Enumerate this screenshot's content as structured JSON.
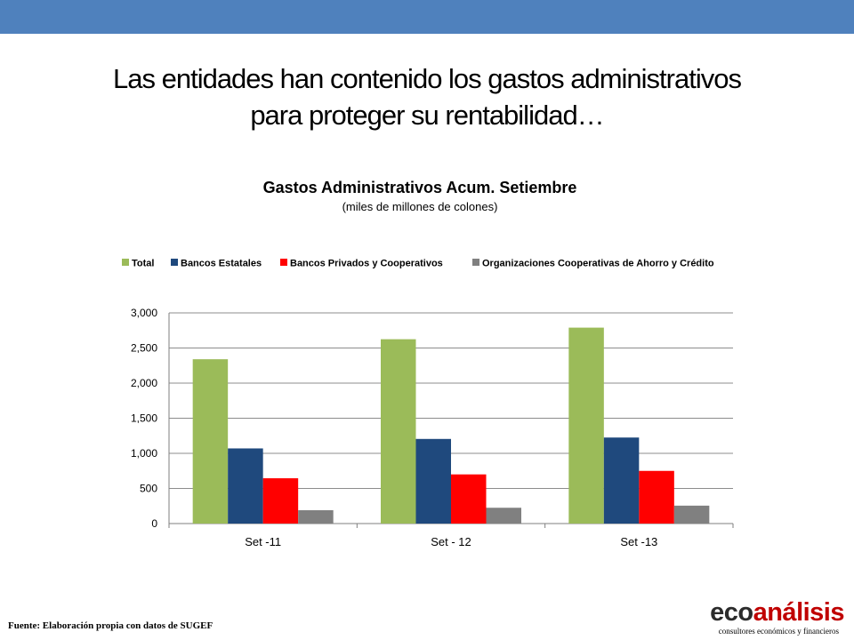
{
  "slide": {
    "title_line1": "Las entidades han contenido los gastos administrativos",
    "title_line2": "para proteger su rentabilidad…",
    "source": "Fuente: Elaboración propia con datos de SUGEF",
    "logo": {
      "part1": "eco",
      "part2": "análisis",
      "tagline": "consultores económicos y financieros",
      "colors": {
        "eco": "#2b2b2b",
        "analisis": "#c00000"
      }
    },
    "header_band_color": "#4f81bd"
  },
  "chart_data": {
    "type": "bar",
    "title": "Gastos Administrativos Acum. Setiembre",
    "subtitle": "(miles de millones de colones)",
    "categories": [
      "Set -11",
      "Set - 12",
      "Set -13"
    ],
    "series": [
      {
        "name": "Total",
        "color": "#9bbb59",
        "values": [
          2340,
          2625,
          2790
        ]
      },
      {
        "name": "Bancos Estatales",
        "color": "#1f497d",
        "values": [
          1070,
          1205,
          1225
        ]
      },
      {
        "name": "Bancos Privados y Cooperativos",
        "color": "#ff0000",
        "values": [
          645,
          700,
          750
        ]
      },
      {
        "name": "Organizaciones Cooperativas de Ahorro y Crédito",
        "color": "#808080",
        "values": [
          190,
          225,
          255
        ]
      }
    ],
    "yticks": [
      "0",
      "500",
      "1,000",
      "1,500",
      "2,000",
      "2,500",
      "3,000"
    ],
    "ylim": [
      0,
      3000
    ],
    "grid": true,
    "legend_position": "top"
  }
}
